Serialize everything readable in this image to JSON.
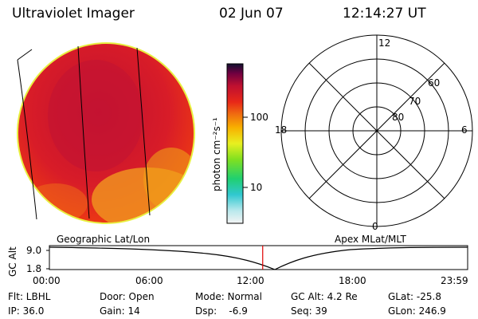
{
  "header": {
    "title": "Ultraviolet Imager",
    "date": "02 Jun 07",
    "time": "12:14:27 UT"
  },
  "colorbar": {
    "unit_label": "photon cm⁻²s⁻¹",
    "ticks": [
      "100",
      "10"
    ]
  },
  "polar_plot": {
    "mlt_labels": [
      "12",
      "18",
      "6",
      "0"
    ],
    "lat_labels": [
      "60",
      "70",
      "80"
    ]
  },
  "map_labels": {
    "left": "Geographic Lat/Lon",
    "right": "Apex MLat/MLT"
  },
  "altitude_plot": {
    "axis_label": "GC Alt",
    "y_ticks": [
      "9.0",
      "1.8"
    ],
    "x_ticks": [
      "00:00",
      "06:00",
      "12:00",
      "18:00",
      "23:59"
    ],
    "current_time_fraction": 0.51
  },
  "info": {
    "flt": "Flt: LBHL",
    "door": "Door: Open",
    "mode": "Mode: Normal",
    "gc_alt": "GC Alt: 4.2 Re",
    "glat": "GLat: -25.8",
    "ip": "IP: 36.0",
    "gain": "Gain: 14",
    "dsp": "Dsp:    -6.9",
    "seq": "Seq: 39",
    "glon": "GLon: 246.9"
  }
}
